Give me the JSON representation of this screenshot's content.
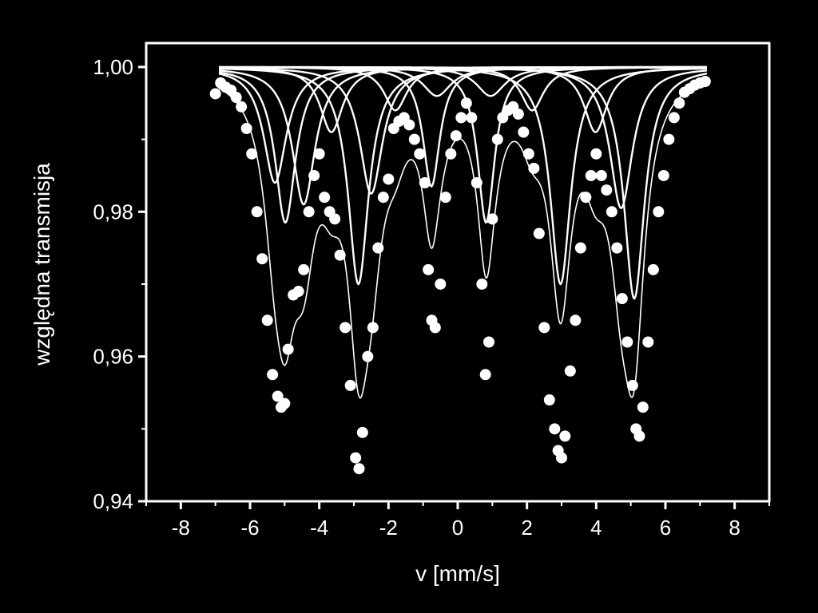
{
  "chart_data": {
    "type": "scatter",
    "title": "",
    "xlabel": "v [mm/s]",
    "ylabel": "względna transmisja",
    "xlim": [
      -9,
      9
    ],
    "ylim": [
      0.94,
      1.0033
    ],
    "x_ticks": [
      -8,
      -6,
      -4,
      -2,
      0,
      2,
      4,
      6,
      8
    ],
    "x_tick_labels": [
      "-8",
      "-6",
      "-4",
      "-2",
      "0",
      "2",
      "4",
      "6",
      "8"
    ],
    "y_ticks": [
      0.94,
      0.96,
      0.98,
      1.0
    ],
    "y_tick_labels": [
      "0,94",
      "0,96",
      "0,98",
      "1,00"
    ],
    "grid": false,
    "legend": "none",
    "colors": {
      "background": "#000000",
      "foreground": "#ffffff"
    },
    "fit_components": [
      {
        "center": -4.98,
        "depth": 0.0215,
        "width": 0.36
      },
      {
        "center": -2.87,
        "depth": 0.03,
        "width": 0.36
      },
      {
        "center": -0.76,
        "depth": 0.0165,
        "width": 0.3
      },
      {
        "center": 0.82,
        "depth": 0.0215,
        "width": 0.3
      },
      {
        "center": 2.97,
        "depth": 0.03,
        "width": 0.36
      },
      {
        "center": 5.1,
        "depth": 0.032,
        "width": 0.36
      },
      {
        "center": -5.28,
        "depth": 0.016,
        "width": 0.4
      },
      {
        "center": -4.45,
        "depth": 0.019,
        "width": 0.4
      },
      {
        "center": -2.5,
        "depth": 0.0175,
        "width": 0.4
      },
      {
        "center": 4.72,
        "depth": 0.0195,
        "width": 0.4
      },
      {
        "center": -3.65,
        "depth": 0.009,
        "width": 0.4
      },
      {
        "center": -1.8,
        "depth": 0.006,
        "width": 0.4
      },
      {
        "center": 2.15,
        "depth": 0.006,
        "width": 0.4
      },
      {
        "center": 3.98,
        "depth": 0.009,
        "width": 0.4
      },
      {
        "center": -0.6,
        "depth": 0.004,
        "width": 0.5
      },
      {
        "center": 0.95,
        "depth": 0.004,
        "width": 0.5
      }
    ],
    "series": [
      {
        "type": "scatter",
        "x": [
          -7.0,
          -6.85,
          -6.7,
          -6.55,
          -6.4,
          -6.25,
          -6.1,
          -5.95,
          -5.8,
          -5.65,
          -5.5,
          -5.35,
          -5.2,
          -5.1,
          -5.0,
          -4.9,
          -4.75,
          -4.6,
          -4.45,
          -4.3,
          -4.15,
          -4.0,
          -3.85,
          -3.7,
          -3.55,
          -3.4,
          -3.25,
          -3.1,
          -2.95,
          -2.85,
          -2.75,
          -2.6,
          -2.45,
          -2.3,
          -2.15,
          -2.0,
          -1.85,
          -1.7,
          -1.55,
          -1.4,
          -1.25,
          -1.1,
          -0.95,
          -0.85,
          -0.75,
          -0.65,
          -0.5,
          -0.35,
          -0.2,
          -0.05,
          0.1,
          0.25,
          0.4,
          0.55,
          0.7,
          0.8,
          0.9,
          1.0,
          1.15,
          1.3,
          1.45,
          1.6,
          1.75,
          1.9,
          2.05,
          2.2,
          2.35,
          2.5,
          2.65,
          2.8,
          2.9,
          3.0,
          3.1,
          3.25,
          3.4,
          3.55,
          3.7,
          3.85,
          4.0,
          4.15,
          4.3,
          4.45,
          4.6,
          4.75,
          4.9,
          5.05,
          5.15,
          5.25,
          5.35,
          5.5,
          5.65,
          5.8,
          5.95,
          6.1,
          6.25,
          6.4,
          6.55,
          6.7,
          6.85,
          7.0,
          7.15
        ],
        "y": [
          0.9963,
          0.9978,
          0.9972,
          0.9968,
          0.9958,
          0.9945,
          0.9915,
          0.988,
          0.98,
          0.9735,
          0.965,
          0.9575,
          0.9545,
          0.953,
          0.9535,
          0.961,
          0.9685,
          0.969,
          0.972,
          0.98,
          0.985,
          0.988,
          0.982,
          0.98,
          0.979,
          0.974,
          0.964,
          0.956,
          0.946,
          0.9445,
          0.9495,
          0.96,
          0.964,
          0.975,
          0.982,
          0.9845,
          0.9915,
          0.9925,
          0.993,
          0.992,
          0.99,
          0.988,
          0.984,
          0.972,
          0.965,
          0.964,
          0.97,
          0.982,
          0.988,
          0.9905,
          0.993,
          0.995,
          0.993,
          0.984,
          0.97,
          0.9575,
          0.962,
          0.979,
          0.99,
          0.993,
          0.994,
          0.9945,
          0.9935,
          0.991,
          0.988,
          0.986,
          0.977,
          0.964,
          0.954,
          0.95,
          0.947,
          0.946,
          0.949,
          0.958,
          0.965,
          0.975,
          0.982,
          0.985,
          0.988,
          0.985,
          0.983,
          0.98,
          0.975,
          0.968,
          0.962,
          0.956,
          0.95,
          0.949,
          0.953,
          0.962,
          0.972,
          0.98,
          0.985,
          0.99,
          0.993,
          0.995,
          0.9965,
          0.997,
          0.9975,
          0.9978,
          0.998
        ]
      },
      {
        "type": "line",
        "x_range": [
          -6.9,
          7.2
        ],
        "values": "sum of fit_components"
      }
    ]
  }
}
